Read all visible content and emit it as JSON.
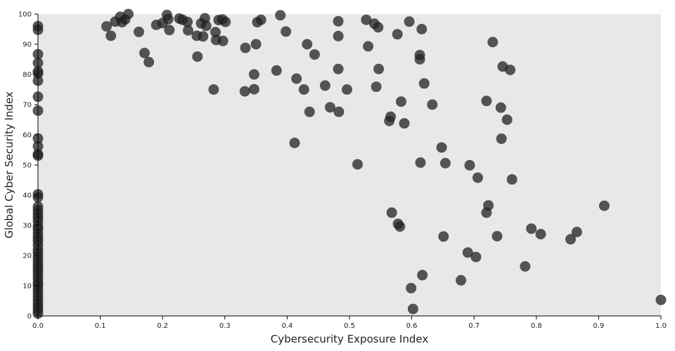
{
  "chart_data": {
    "type": "scatter",
    "title": "",
    "xlabel": "Cybersecurity Exposure Index",
    "ylabel": "Global Cyber Security Index",
    "xlim": [
      0,
      1
    ],
    "ylim": [
      0,
      100
    ],
    "x_ticks": [
      "0.0",
      "0.1",
      "0.2",
      "0.3",
      "0.4",
      "0.5",
      "0.6",
      "0.7",
      "0.8",
      "0.9",
      "1.0"
    ],
    "y_ticks": [
      "0",
      "10",
      "20",
      "30",
      "40",
      "50",
      "60",
      "70",
      "80",
      "90",
      "100"
    ],
    "grid": false,
    "legend": "none",
    "colors": {
      "plot_background": "#e8e8e8",
      "point": "#222222",
      "point_opacity": 0.75
    },
    "points": [
      [
        0.0,
        96.0
      ],
      [
        0.0,
        94.8
      ],
      [
        0.0,
        86.7
      ],
      [
        0.0,
        83.8
      ],
      [
        0.0,
        81.0
      ],
      [
        0.0,
        80.3
      ],
      [
        0.0,
        77.9
      ],
      [
        0.0,
        72.6
      ],
      [
        0.0,
        68.0
      ],
      [
        0.0,
        58.8
      ],
      [
        0.0,
        56.2
      ],
      [
        0.0,
        53.6
      ],
      [
        0.0,
        53.1
      ],
      [
        0.0,
        40.3
      ],
      [
        0.0,
        39.3
      ],
      [
        0.0,
        36.2
      ],
      [
        0.0,
        35.0
      ],
      [
        0.0,
        33.8
      ],
      [
        0.0,
        32.6
      ],
      [
        0.0,
        31.4
      ],
      [
        0.0,
        29.8
      ],
      [
        0.0,
        28.7
      ],
      [
        0.0,
        27.3
      ],
      [
        0.0,
        26.0
      ],
      [
        0.0,
        24.9
      ],
      [
        0.0,
        23.5
      ],
      [
        0.0,
        22.0
      ],
      [
        0.0,
        20.8
      ],
      [
        0.0,
        19.5
      ],
      [
        0.0,
        18.3
      ],
      [
        0.0,
        17.0
      ],
      [
        0.0,
        15.9
      ],
      [
        0.0,
        14.8
      ],
      [
        0.0,
        13.5
      ],
      [
        0.0,
        12.3
      ],
      [
        0.0,
        11.0
      ],
      [
        0.0,
        10.1
      ],
      [
        0.0,
        8.9
      ],
      [
        0.0,
        7.7
      ],
      [
        0.0,
        6.4
      ],
      [
        0.0,
        5.2
      ],
      [
        0.0,
        4.0
      ],
      [
        0.0,
        2.9
      ],
      [
        0.0,
        1.9
      ],
      [
        0.0,
        0.8
      ],
      [
        0.11,
        95.9
      ],
      [
        0.117,
        92.8
      ],
      [
        0.124,
        97.5
      ],
      [
        0.132,
        99.1
      ],
      [
        0.135,
        97.3
      ],
      [
        0.14,
        98.2
      ],
      [
        0.145,
        100.0
      ],
      [
        0.162,
        94.1
      ],
      [
        0.171,
        87.1
      ],
      [
        0.178,
        84.1
      ],
      [
        0.19,
        96.4
      ],
      [
        0.2,
        97.0
      ],
      [
        0.207,
        99.7
      ],
      [
        0.209,
        98.3
      ],
      [
        0.211,
        94.7
      ],
      [
        0.227,
        98.5
      ],
      [
        0.232,
        98.1
      ],
      [
        0.24,
        97.4
      ],
      [
        0.241,
        94.6
      ],
      [
        0.255,
        92.8
      ],
      [
        0.256,
        85.9
      ],
      [
        0.262,
        96.9
      ],
      [
        0.265,
        92.6
      ],
      [
        0.268,
        98.6
      ],
      [
        0.27,
        96.1
      ],
      [
        0.282,
        75.0
      ],
      [
        0.285,
        94.0
      ],
      [
        0.286,
        91.4
      ],
      [
        0.29,
        98.0
      ],
      [
        0.296,
        98.2
      ],
      [
        0.297,
        91.1
      ],
      [
        0.301,
        97.4
      ],
      [
        0.332,
        74.4
      ],
      [
        0.333,
        88.8
      ],
      [
        0.347,
        75.1
      ],
      [
        0.347,
        80.0
      ],
      [
        0.35,
        90.0
      ],
      [
        0.352,
        97.3
      ],
      [
        0.358,
        98.1
      ],
      [
        0.383,
        81.3
      ],
      [
        0.389,
        99.6
      ],
      [
        0.398,
        94.2
      ],
      [
        0.412,
        57.3
      ],
      [
        0.415,
        78.6
      ],
      [
        0.427,
        75.0
      ],
      [
        0.432,
        90.0
      ],
      [
        0.436,
        67.6
      ],
      [
        0.444,
        86.6
      ],
      [
        0.461,
        76.3
      ],
      [
        0.469,
        69.1
      ],
      [
        0.482,
        97.6
      ],
      [
        0.482,
        92.7
      ],
      [
        0.482,
        81.8
      ],
      [
        0.483,
        67.6
      ],
      [
        0.496,
        75.0
      ],
      [
        0.513,
        50.2
      ],
      [
        0.527,
        98.1
      ],
      [
        0.53,
        89.3
      ],
      [
        0.54,
        96.8
      ],
      [
        0.543,
        75.9
      ],
      [
        0.546,
        95.6
      ],
      [
        0.547,
        81.8
      ],
      [
        0.564,
        64.6
      ],
      [
        0.566,
        66.0
      ],
      [
        0.568,
        34.2
      ],
      [
        0.577,
        93.3
      ],
      [
        0.578,
        30.5
      ],
      [
        0.581,
        29.6
      ],
      [
        0.583,
        71.0
      ],
      [
        0.588,
        63.8
      ],
      [
        0.596,
        97.5
      ],
      [
        0.599,
        9.2
      ],
      [
        0.602,
        2.3
      ],
      [
        0.613,
        86.4
      ],
      [
        0.613,
        85.0
      ],
      [
        0.614,
        50.8
      ],
      [
        0.616,
        95.0
      ],
      [
        0.617,
        13.5
      ],
      [
        0.62,
        77.0
      ],
      [
        0.633,
        70.0
      ],
      [
        0.648,
        55.8
      ],
      [
        0.651,
        26.3
      ],
      [
        0.654,
        50.6
      ],
      [
        0.679,
        11.8
      ],
      [
        0.69,
        21.0
      ],
      [
        0.693,
        49.9
      ],
      [
        0.703,
        19.5
      ],
      [
        0.706,
        45.8
      ],
      [
        0.72,
        71.2
      ],
      [
        0.72,
        34.2
      ],
      [
        0.723,
        36.6
      ],
      [
        0.73,
        90.7
      ],
      [
        0.737,
        26.4
      ],
      [
        0.743,
        69.0
      ],
      [
        0.744,
        58.7
      ],
      [
        0.746,
        82.6
      ],
      [
        0.753,
        65.0
      ],
      [
        0.758,
        81.5
      ],
      [
        0.761,
        45.2
      ],
      [
        0.782,
        16.4
      ],
      [
        0.792,
        28.9
      ],
      [
        0.807,
        27.1
      ],
      [
        0.855,
        25.4
      ],
      [
        0.865,
        27.8
      ],
      [
        0.909,
        36.5
      ],
      [
        1.0,
        5.3
      ]
    ]
  }
}
